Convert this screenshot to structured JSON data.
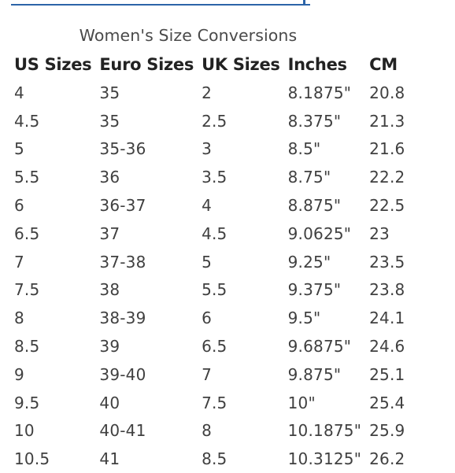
{
  "caption": "Women's Size Conversions",
  "columns": [
    "US Sizes",
    "Euro Sizes",
    "UK Sizes",
    "Inches",
    "CM"
  ],
  "rows": [
    [
      "4",
      "35",
      "2",
      "8.1875\"",
      "20.8"
    ],
    [
      "4.5",
      "35",
      "2.5",
      "8.375\"",
      "21.3"
    ],
    [
      "5",
      "35-36",
      "3",
      "8.5\"",
      "21.6"
    ],
    [
      "5.5",
      "36",
      "3.5",
      "8.75\"",
      "22.2"
    ],
    [
      "6",
      "36-37",
      "4",
      "8.875\"",
      "22.5"
    ],
    [
      "6.5",
      "37",
      "4.5",
      "9.0625\"",
      "23"
    ],
    [
      "7",
      "37-38",
      "5",
      "9.25\"",
      "23.5"
    ],
    [
      "7.5",
      "38",
      "5.5",
      "9.375\"",
      "23.8"
    ],
    [
      "8",
      "38-39",
      "6",
      "9.5\"",
      "24.1"
    ],
    [
      "8.5",
      "39",
      "6.5",
      "9.6875\"",
      "24.6"
    ],
    [
      "9",
      "39-40",
      "7",
      "9.875\"",
      "25.1"
    ],
    [
      "9.5",
      "40",
      "7.5",
      "10\"",
      "25.4"
    ],
    [
      "10",
      "40-41",
      "8",
      "10.1875\"",
      "25.9"
    ],
    [
      "10.5",
      "41",
      "8.5",
      "10.3125\"",
      "26.2"
    ]
  ],
  "colors": {
    "rule": "#2c64a8",
    "header_text": "#222222",
    "body_text": "#404040"
  }
}
